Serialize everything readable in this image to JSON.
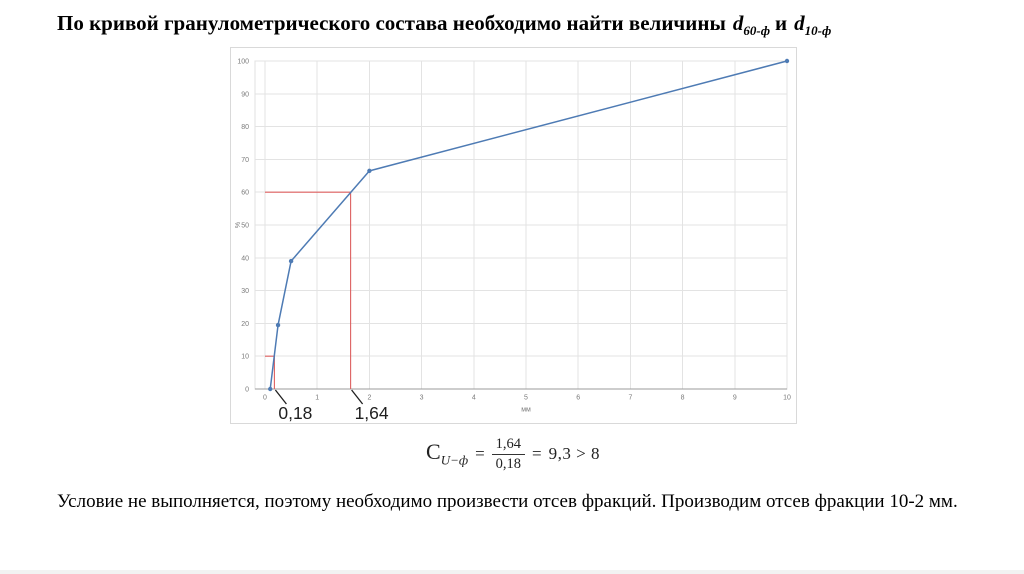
{
  "slide": {
    "title": {
      "prefix": "По кривой гранулометрического состава необходимо найти величины",
      "var1": "d",
      "var1_sub": "60-ф",
      "conjunction": "и",
      "var2": "d",
      "var2_sub": "10-ф"
    },
    "formula": {
      "symbol": "C",
      "symbol_sub": "U−ф",
      "equals": "=",
      "numerator": "1,64",
      "denominator": "0,18",
      "equals2": "=",
      "result": "9,3 > 8"
    },
    "conclusion": "Условие не выполняется, поэтому необходимо произвести отсев фракций. Производим отсев фракции 10-2 мм."
  },
  "chart_data": {
    "type": "line",
    "x": [
      0.1,
      0.25,
      0.5,
      2,
      10
    ],
    "y": [
      0,
      19.5,
      39,
      66.5,
      100
    ],
    "xlabel": "мм",
    "ylabel": "%",
    "xlim": [
      0,
      10
    ],
    "ylim": [
      0,
      100
    ],
    "x_ticks": [
      0,
      1,
      2,
      3,
      4,
      5,
      6,
      7,
      8,
      9,
      10
    ],
    "y_ticks": [
      0,
      10,
      20,
      30,
      40,
      50,
      60,
      70,
      80,
      90,
      100
    ],
    "grid": true,
    "guides": [
      {
        "x": 0.18,
        "y": 10,
        "label": "0,18"
      },
      {
        "x": 1.64,
        "y": 60,
        "label": "1,64"
      }
    ],
    "colors": {
      "series": "#4e7bb4",
      "guide": "#dd5f5f",
      "grid": "#e3e3e3",
      "plot_border": "#e0e0e0",
      "axis": "#9b9b9b",
      "tick_text": "#7a7a7a",
      "annotation_text": "#1f1f1f"
    }
  }
}
